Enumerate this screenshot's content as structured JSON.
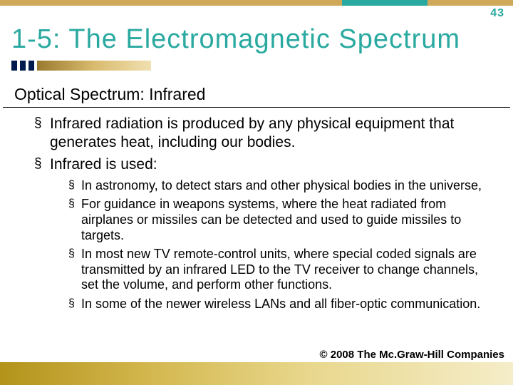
{
  "page_number": "43",
  "title": "1-5: The Electromagnetic Spectrum",
  "subtitle": "Optical Spectrum: Infrared",
  "level1": [
    "Infrared radiation is produced by any physical equipment that generates heat, including our bodies.",
    "Infrared is used:"
  ],
  "level2": [
    "In astronomy, to detect stars and other physical bodies in the universe,",
    "For guidance in weapons systems, where the heat radiated from airplanes or missiles can be detected and used to guide missiles to targets.",
    "In most new TV remote-control units, where special coded signals are transmitted by an infrared LED to the TV receiver to change channels, set the volume, and perform other functions.",
    "In some of the newer wireless LANs and all fiber-optic communication."
  ],
  "copyright": "© 2008 The Mc.Graw-Hill Companies",
  "colors": {
    "teal": "#2aa9a0",
    "gold": "#cfa85a",
    "dark_blue": "#001a4d",
    "body_text": "#000000",
    "background": "#ffffff"
  },
  "typography": {
    "title_fontsize": 38,
    "subtitle_fontsize": 23,
    "lvl1_fontsize": 21,
    "lvl2_fontsize": 18,
    "copyright_fontsize": 15,
    "pagenum_fontsize": 16
  }
}
